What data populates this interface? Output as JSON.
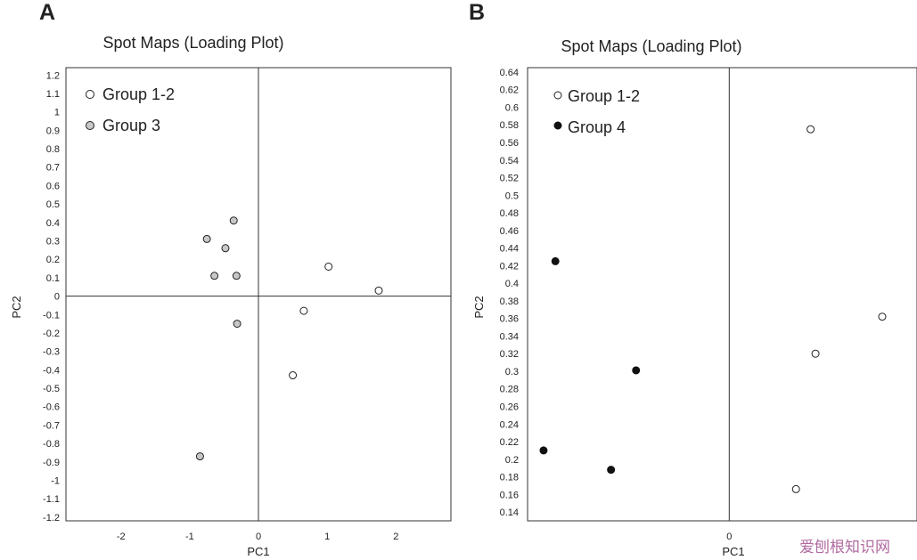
{
  "chart_data": [
    {
      "panel": "A",
      "type": "scatter",
      "title": "Spot Maps (Loading Plot)",
      "xlabel": "PC1",
      "ylabel": "PC2",
      "xlim": [
        -2.8,
        2.8
      ],
      "ylim": [
        -1.22,
        1.24
      ],
      "xticks": [
        "-2",
        "-1",
        "0",
        "1",
        "2"
      ],
      "yticks": [
        "1.2",
        "1.1",
        "1",
        "0.9",
        "0.8",
        "0.7",
        "0.6",
        "0.5",
        "0.4",
        "0.3",
        "0.2",
        "0.1",
        "0",
        "-0.1",
        "-0.2",
        "-0.3",
        "-0.4",
        "-0.5",
        "-0.6",
        "-0.7",
        "-0.8",
        "-0.9",
        "-1",
        "-1.1",
        "-1.2"
      ],
      "legend_position": "top-left",
      "series": [
        {
          "name": "Group 1-2",
          "marker": "open",
          "color": "#ffffff",
          "points": [
            [
              1.02,
              0.16
            ],
            [
              1.75,
              0.03
            ],
            [
              0.66,
              -0.08
            ],
            [
              0.5,
              -0.43
            ]
          ]
        },
        {
          "name": "Group 3",
          "marker": "grey",
          "color": "#c8c8c8",
          "points": [
            [
              -0.36,
              0.41
            ],
            [
              -0.75,
              0.31
            ],
            [
              -0.48,
              0.26
            ],
            [
              -0.64,
              0.11
            ],
            [
              -0.32,
              0.11
            ],
            [
              -0.31,
              -0.15
            ],
            [
              -0.85,
              -0.87
            ]
          ]
        }
      ]
    },
    {
      "panel": "B",
      "type": "scatter",
      "title": "Spot Maps (Loading Plot)",
      "xlabel": "PC1",
      "ylabel": "PC2",
      "xlim": [
        -2.9,
        2.7
      ],
      "ylim": [
        0.13,
        0.645
      ],
      "xticks": [
        "0"
      ],
      "yticks": [
        "0.64",
        "0.62",
        "0.6",
        "0.58",
        "0.56",
        "0.54",
        "0.52",
        "0.5",
        "0.48",
        "0.46",
        "0.44",
        "0.42",
        "0.4",
        "0.38",
        "0.36",
        "0.34",
        "0.32",
        "0.3",
        "0.28",
        "0.26",
        "0.24",
        "0.22",
        "0.2",
        "0.18",
        "0.16",
        "0.14"
      ],
      "legend_position": "top-left",
      "series": [
        {
          "name": "Group 1-2",
          "marker": "open",
          "color": "#ffffff",
          "points": [
            [
              1.17,
              0.575
            ],
            [
              2.2,
              0.362
            ],
            [
              1.24,
              0.32
            ],
            [
              0.96,
              0.166
            ]
          ]
        },
        {
          "name": "Group 4",
          "marker": "black",
          "color": "#111111",
          "points": [
            [
              -2.5,
              0.425
            ],
            [
              -1.34,
              0.301
            ],
            [
              -2.67,
              0.21
            ],
            [
              -1.7,
              0.188
            ]
          ]
        }
      ]
    }
  ],
  "panel_letters": {
    "a": "A",
    "b": "B"
  },
  "titles": {
    "a": "Spot Maps (Loading Plot)",
    "b": "Spot Maps (Loading Plot)"
  },
  "axis_labels": {
    "a_x": "PC1",
    "a_y": "PC2",
    "b_x": "PC1",
    "b_y": "PC2"
  },
  "legend": {
    "a": [
      "Group 1-2",
      "Group 3"
    ],
    "b": [
      "Group 1-2",
      "Group 4"
    ]
  },
  "watermark": "爱刨根知识网"
}
